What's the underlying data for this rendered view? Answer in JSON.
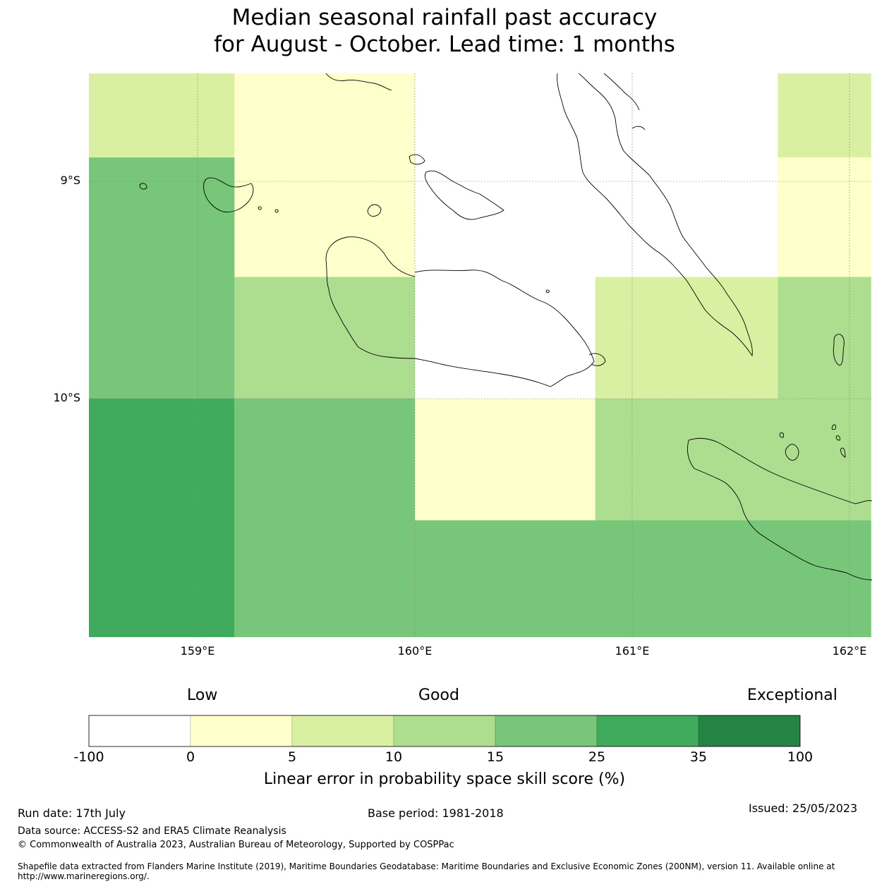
{
  "title": {
    "line1": "Median seasonal rainfall past accuracy",
    "line2": "for August - October. Lead time: 1 months"
  },
  "map": {
    "lat_labels": [
      "9°S",
      "10°S"
    ],
    "lon_labels": [
      "159°E",
      "160°E",
      "161°E",
      "162°E"
    ],
    "lon_range": [
      158.5,
      162.1
    ],
    "lat_range": [
      -11.1,
      -8.5
    ],
    "grid": [
      {
        "lon0": 158.5,
        "lon1": 159.17,
        "lat0": -8.89,
        "lat1": -8.5,
        "category": "5-10"
      },
      {
        "lon0": 159.17,
        "lon1": 160.0,
        "lat0": -9.44,
        "lat1": -8.5,
        "category": "0-5"
      },
      {
        "lon0": 160.0,
        "lon1": 160.83,
        "lat0": -9.44,
        "lat1": -8.5,
        "category": "-100-0"
      },
      {
        "lon0": 160.83,
        "lon1": 161.67,
        "lat0": -9.44,
        "lat1": -8.5,
        "category": "-100-0"
      },
      {
        "lon0": 161.67,
        "lon1": 162.1,
        "lat0": -8.89,
        "lat1": -8.5,
        "category": "5-10"
      },
      {
        "lon0": 161.67,
        "lon1": 162.1,
        "lat0": -9.44,
        "lat1": -8.89,
        "category": "0-5"
      },
      {
        "lon0": 158.5,
        "lon1": 159.17,
        "lat0": -10.0,
        "lat1": -8.89,
        "category": "15-25"
      },
      {
        "lon0": 159.17,
        "lon1": 160.0,
        "lat0": -10.0,
        "lat1": -9.44,
        "category": "10-15"
      },
      {
        "lon0": 160.0,
        "lon1": 160.83,
        "lat0": -10.0,
        "lat1": -9.44,
        "category": "-100-0"
      },
      {
        "lon0": 160.83,
        "lon1": 161.67,
        "lat0": -10.0,
        "lat1": -9.44,
        "category": "5-10"
      },
      {
        "lon0": 161.67,
        "lon1": 162.1,
        "lat0": -10.0,
        "lat1": -9.44,
        "category": "10-15"
      },
      {
        "lon0": 158.5,
        "lon1": 159.17,
        "lat0": -11.1,
        "lat1": -10.0,
        "category": "25-35"
      },
      {
        "lon0": 159.17,
        "lon1": 160.0,
        "lat0": -11.1,
        "lat1": -10.0,
        "category": "15-25"
      },
      {
        "lon0": 160.0,
        "lon1": 160.83,
        "lat0": -10.56,
        "lat1": -10.0,
        "category": "0-5"
      },
      {
        "lon0": 160.83,
        "lon1": 162.1,
        "lat0": -10.56,
        "lat1": -10.0,
        "category": "10-15"
      },
      {
        "lon0": 160.0,
        "lon1": 162.1,
        "lat0": -11.1,
        "lat1": -10.56,
        "category": "15-25"
      }
    ]
  },
  "legend": {
    "categories": [
      {
        "key": "-100-0",
        "color": "#ffffff"
      },
      {
        "key": "0-5",
        "color": "#ffffcc"
      },
      {
        "key": "5-10",
        "color": "#d9f0a3"
      },
      {
        "key": "10-15",
        "color": "#addd8e"
      },
      {
        "key": "15-25",
        "color": "#78c679"
      },
      {
        "key": "25-35",
        "color": "#41ab5d"
      },
      {
        "key": "35-100",
        "color": "#238443"
      }
    ],
    "ticks": [
      "-100",
      "0",
      "5",
      "10",
      "15",
      "25",
      "35",
      "100"
    ],
    "labels": {
      "low": "Low",
      "good": "Good",
      "exceptional": "Exceptional"
    },
    "title": "Linear error in probability space skill score (%)"
  },
  "footer": {
    "run_date": "Run date: 17th July",
    "base_period": "Base period: 1981-2018",
    "issued": "Issued: 25/05/2023",
    "data_source": "Data source: ACCESS-S2 and ERA5 Climate Reanalysis",
    "copyright": "© Commonwealth of Australia 2023, Australian Bureau of Meteorology, Supported by COSPPac",
    "shapefile": "Shapefile data extracted from Flanders Marine Institute (2019), Maritime Boundaries Geodatabase: Maritime Boundaries and Exclusive Economic Zones (200NM), version 11. Available online at http://www.marineregions.org/."
  }
}
